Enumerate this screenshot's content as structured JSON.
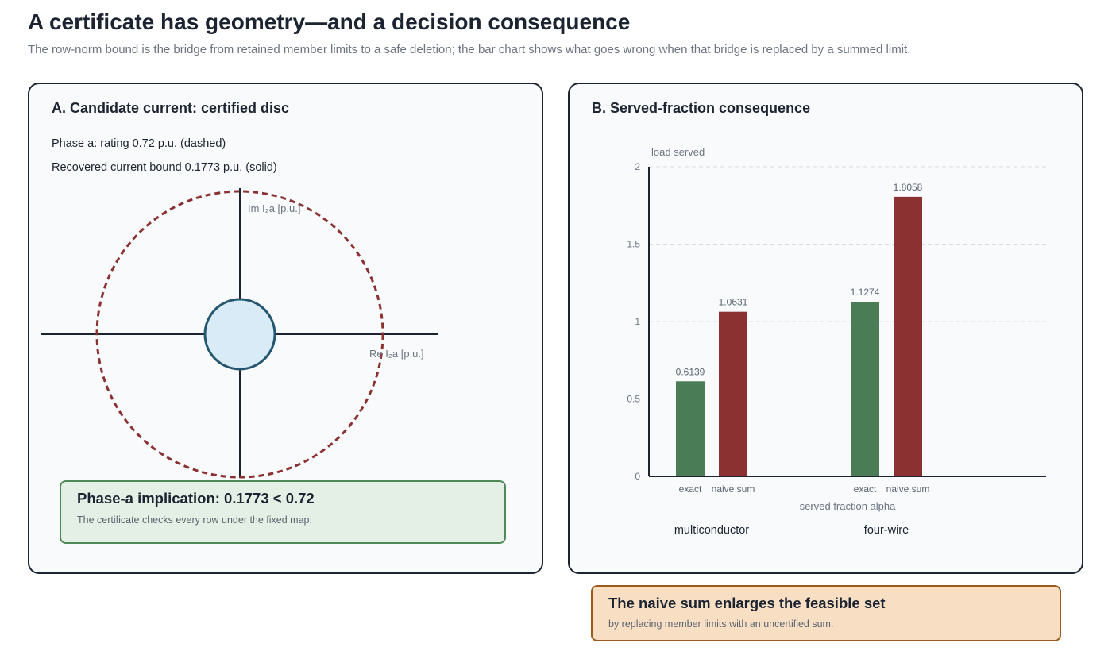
{
  "header": {
    "title": "A certificate has geometry—and a decision consequence",
    "subtitle": "The row-norm bound is the bridge from retained member limits to a safe deletion; the bar chart shows what goes wrong when that bridge is replaced by a summed limit."
  },
  "panel_a": {
    "title": "A. Candidate current: certified disc",
    "rating_note": "Phase a: rating 0.72 p.u. (dashed)",
    "bound_note": "Recovered current bound 0.1773 p.u. (solid)",
    "axis_im_label": "Im I₂a [p.u.]",
    "axis_re_label": "Re I₂a [p.u.]",
    "rating_value": 0.72,
    "bound_value": 0.1773,
    "colors": {
      "rating_circle": "#8b3131",
      "bound_fill": "#d8ebf6",
      "bound_stroke": "#24566f"
    },
    "callout": {
      "title": "Phase-a implication: 0.1773 < 0.72",
      "text": "The certificate checks every row under the fixed map."
    }
  },
  "panel_b": {
    "title": "B. Served-fraction consequence",
    "callout": {
      "title": "The naive sum enlarges the feasible set",
      "text": "by replacing member limits with an uncertified sum."
    }
  },
  "chart_data": {
    "type": "bar",
    "ylabel": "load served",
    "xlabel": "served fraction alpha",
    "ylim": [
      0,
      2
    ],
    "yticks": [
      0,
      0.5,
      1,
      1.5,
      2
    ],
    "ytick_labels": [
      "0",
      "0.5",
      "1",
      "1.5",
      "2"
    ],
    "grid": true,
    "groups": [
      {
        "name": "multiconductor",
        "bars": [
          {
            "label": "exact",
            "value": 0.6139,
            "value_label": "0.6139",
            "color": "#4a7c55"
          },
          {
            "label": "naive sum",
            "value": 1.0631,
            "value_label": "1.0631",
            "color": "#8b3131"
          }
        ]
      },
      {
        "name": "four-wire",
        "bars": [
          {
            "label": "exact",
            "value": 1.1274,
            "value_label": "1.1274",
            "color": "#4a7c55"
          },
          {
            "label": "naive sum",
            "value": 1.8058,
            "value_label": "1.8058",
            "color": "#8b3131"
          }
        ]
      }
    ]
  }
}
